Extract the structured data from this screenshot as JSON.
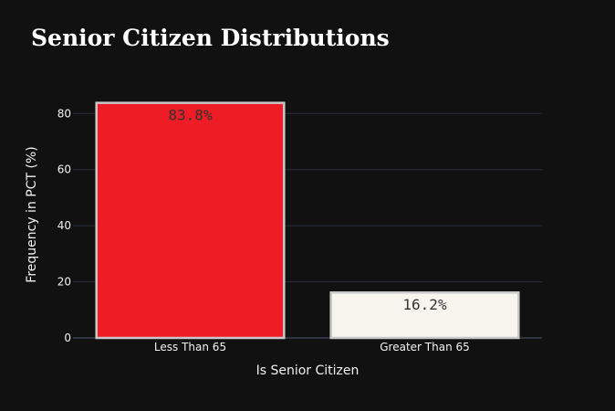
{
  "chart_data": {
    "type": "bar",
    "title": "Senior Citizen Distributions",
    "xlabel": "Is Senior Citizen",
    "ylabel": "Frequency in PCT (%)",
    "categories": [
      "Less Than 65",
      "Greater Than 65"
    ],
    "values": [
      83.8,
      16.2
    ],
    "labels": [
      "83.8%",
      "16.2%"
    ],
    "colors": [
      "#ee1c25",
      "#f8f5ef"
    ],
    "bar_outline_color": "#c8c8c8",
    "ylim": [
      0,
      84
    ],
    "yticks": [
      0,
      20,
      40,
      60,
      80
    ],
    "grid": true,
    "legend": false
  }
}
